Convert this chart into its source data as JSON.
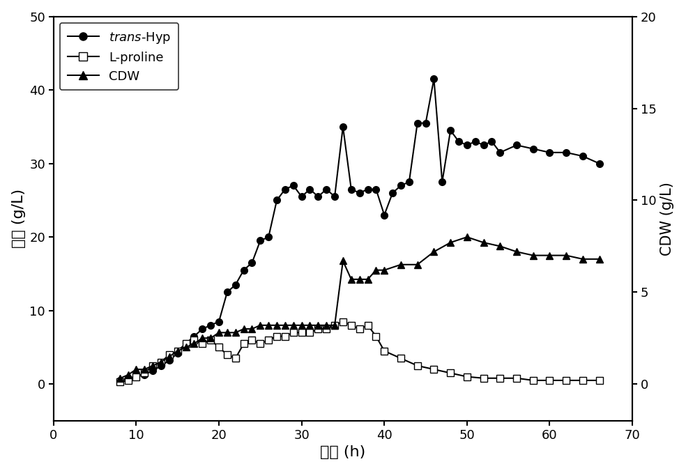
{
  "trans_hyp_x": [
    8,
    9,
    10,
    11,
    12,
    13,
    14,
    15,
    16,
    17,
    18,
    19,
    20,
    21,
    22,
    23,
    24,
    25,
    26,
    27,
    28,
    29,
    30,
    31,
    32,
    33,
    34,
    35,
    36,
    37,
    38,
    39,
    40,
    41,
    42,
    43,
    44,
    45,
    46,
    47,
    48,
    49,
    50,
    51,
    52,
    53,
    54,
    56,
    58,
    60,
    62,
    64,
    66
  ],
  "trans_hyp_y": [
    0.5,
    0.8,
    1.0,
    1.3,
    1.8,
    2.5,
    3.2,
    4.2,
    5.5,
    6.5,
    7.5,
    8.0,
    8.5,
    12.5,
    13.5,
    15.5,
    16.5,
    19.5,
    20.0,
    25.0,
    26.5,
    27.0,
    25.5,
    26.5,
    25.5,
    26.5,
    25.5,
    35.0,
    26.5,
    26.0,
    26.5,
    26.5,
    23.0,
    26.0,
    27.0,
    27.5,
    35.5,
    35.5,
    41.5,
    27.5,
    34.5,
    33.0,
    32.5,
    33.0,
    32.5,
    33.0,
    31.5,
    32.5,
    32.0,
    31.5,
    31.5,
    31.0,
    30.0
  ],
  "lproline_x": [
    8,
    9,
    10,
    11,
    12,
    13,
    14,
    15,
    16,
    17,
    18,
    19,
    20,
    21,
    22,
    23,
    24,
    25,
    26,
    27,
    28,
    29,
    30,
    31,
    32,
    33,
    34,
    35,
    36,
    37,
    38,
    39,
    40,
    42,
    44,
    46,
    48,
    50,
    52,
    54,
    56,
    58,
    60,
    62,
    64,
    66
  ],
  "lproline_y": [
    0.3,
    0.5,
    1.0,
    1.5,
    2.5,
    3.0,
    4.0,
    4.5,
    5.5,
    6.0,
    5.5,
    6.0,
    5.0,
    4.0,
    3.5,
    5.5,
    6.0,
    5.5,
    6.0,
    6.5,
    6.5,
    7.0,
    7.0,
    7.0,
    7.5,
    7.5,
    8.0,
    8.5,
    8.0,
    7.5,
    8.0,
    6.5,
    4.5,
    3.5,
    2.5,
    2.0,
    1.5,
    1.0,
    0.8,
    0.8,
    0.8,
    0.5,
    0.5,
    0.5,
    0.5,
    0.5
  ],
  "cdw_x": [
    8,
    9,
    10,
    11,
    12,
    13,
    14,
    15,
    16,
    17,
    18,
    19,
    20,
    21,
    22,
    23,
    24,
    25,
    26,
    27,
    28,
    29,
    30,
    31,
    32,
    33,
    34,
    35,
    36,
    37,
    38,
    39,
    40,
    42,
    44,
    46,
    48,
    50,
    52,
    54,
    56,
    58,
    60,
    62,
    64,
    66
  ],
  "cdw_y": [
    0.3,
    0.5,
    0.8,
    0.8,
    1.0,
    1.2,
    1.5,
    1.8,
    2.0,
    2.2,
    2.5,
    2.5,
    2.8,
    2.8,
    2.8,
    3.0,
    3.0,
    3.2,
    3.2,
    3.2,
    3.2,
    3.2,
    3.2,
    3.2,
    3.2,
    3.2,
    3.2,
    6.7,
    5.7,
    5.7,
    5.7,
    6.2,
    6.2,
    6.5,
    6.5,
    7.2,
    7.7,
    8.0,
    7.7,
    7.5,
    7.2,
    7.0,
    7.0,
    7.0,
    6.8,
    6.8
  ],
  "xlabel": "时间 (h)",
  "ylabel_left": "浓度 (g/L)",
  "ylabel_right": "CDW (g/L)",
  "xlim": [
    0,
    70
  ],
  "ylim_left": [
    -5,
    50
  ],
  "ylim_right": [
    -2,
    20
  ],
  "xticks": [
    0,
    10,
    20,
    30,
    40,
    50,
    60,
    70
  ],
  "yticks_left": [
    0,
    10,
    20,
    30,
    40,
    50
  ],
  "yticks_right": [
    0,
    5,
    10,
    15,
    20
  ],
  "legend_labels": [
    "$\\mathit{trans}$-Hyp",
    "L-proline",
    "CDW"
  ],
  "line_color": "#000000",
  "bg_color": "#ffffff"
}
